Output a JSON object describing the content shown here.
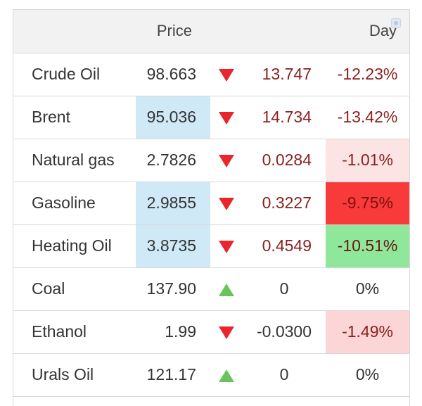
{
  "header": {
    "price_label": "Price",
    "day_label": "Day"
  },
  "colors": {
    "down_arrow": "#e8262c",
    "up_arrow": "#69c45c",
    "price_highlight": "#cfe9f7",
    "strong_red": "#f83a3a",
    "green": "#8ee79a",
    "light_red": "#fde4e4"
  },
  "rows": [
    {
      "name": "Crude Oil",
      "price": "98.663",
      "direction": "down-arrow-icon",
      "change": "13.747",
      "percent": "-12.23%"
    },
    {
      "name": "Brent",
      "price": "95.036",
      "direction": "down-arrow-icon",
      "change": "14.734",
      "percent": "-13.42%"
    },
    {
      "name": "Natural gas",
      "price": "2.7826",
      "direction": "down-arrow-icon",
      "change": "0.0284",
      "percent": "-1.01%"
    },
    {
      "name": "Gasoline",
      "price": "2.9855",
      "direction": "down-arrow-icon",
      "change": "0.3227",
      "percent": "-9.75%"
    },
    {
      "name": "Heating Oil",
      "price": "3.8735",
      "direction": "down-arrow-icon",
      "change": "0.4549",
      "percent": "-10.51%"
    },
    {
      "name": "Coal",
      "price": "137.90",
      "direction": "up-arrow-icon",
      "change": "0",
      "percent": "0%"
    },
    {
      "name": "Ethanol",
      "price": "1.99",
      "direction": "down-arrow-icon",
      "change": "-0.0300",
      "percent": "-1.49%"
    },
    {
      "name": "Urals Oil",
      "price": "121.17",
      "direction": "up-arrow-icon",
      "change": "0",
      "percent": "0%"
    }
  ]
}
